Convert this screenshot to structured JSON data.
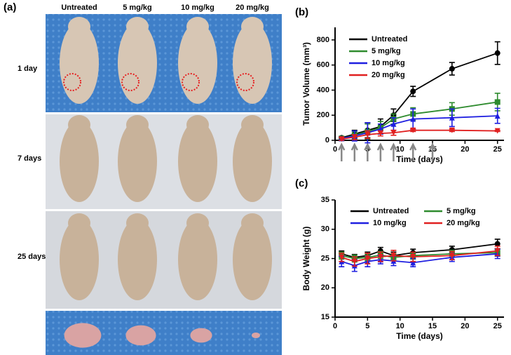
{
  "photo": {
    "label": "(a)",
    "columns": [
      "Untreated",
      "5 mg/kg",
      "10 mg/kg",
      "20 mg/kg"
    ],
    "rows": [
      "1 day",
      "7 days",
      "25 days"
    ]
  },
  "chart_data": [
    {
      "type": "line",
      "label": "(b)",
      "x_label": "Time (days)",
      "y_label": "Tumor Volume (mm³)",
      "x": [
        1,
        3,
        5,
        7,
        9,
        12,
        18,
        25
      ],
      "xlim": [
        0,
        26
      ],
      "xticks": [
        0,
        5,
        10,
        15,
        20,
        25
      ],
      "ylim": [
        0,
        900
      ],
      "yticks": [
        0,
        200,
        400,
        600,
        800
      ],
      "legend": "upper left",
      "legend_columns": 1,
      "markers_x": [
        1,
        3,
        5,
        7,
        9,
        12,
        15
      ],
      "series": [
        {
          "name": "Untreated",
          "color": "#000000",
          "marker": "circle",
          "values": [
            20,
            50,
            80,
            110,
            200,
            390,
            570,
            695
          ],
          "errors": [
            10,
            30,
            60,
            60,
            50,
            40,
            50,
            90
          ]
        },
        {
          "name": "5 mg/kg",
          "color": "#2e8b2e",
          "marker": "square",
          "values": [
            15,
            40,
            70,
            100,
            170,
            210,
            250,
            305
          ],
          "errors": [
            10,
            30,
            60,
            50,
            40,
            50,
            50,
            70
          ]
        },
        {
          "name": "10 mg/kg",
          "color": "#1f1fe0",
          "marker": "triangle-up",
          "values": [
            15,
            35,
            60,
            90,
            130,
            170,
            180,
            195
          ],
          "errors": [
            10,
            40,
            80,
            40,
            50,
            80,
            70,
            60
          ]
        },
        {
          "name": "20 mg/kg",
          "color": "#e02020",
          "marker": "triangle-down",
          "values": [
            10,
            25,
            45,
            55,
            60,
            80,
            80,
            75
          ],
          "errors": [
            10,
            20,
            30,
            20,
            20,
            10,
            10,
            5
          ]
        }
      ]
    },
    {
      "type": "line",
      "label": "(c)",
      "x_label": "Time (days)",
      "y_label": "Body Weight (g)",
      "x": [
        1,
        3,
        5,
        7,
        9,
        12,
        18,
        25
      ],
      "xlim": [
        0,
        26
      ],
      "xticks": [
        0,
        5,
        10,
        15,
        20,
        25
      ],
      "ylim": [
        15,
        35
      ],
      "yticks": [
        15,
        20,
        25,
        30,
        35
      ],
      "legend": "upper center",
      "legend_columns": 2,
      "series": [
        {
          "name": "Untreated",
          "color": "#000000",
          "marker": "circle",
          "values": [
            25.8,
            25.2,
            25.5,
            26.3,
            25.5,
            26.0,
            26.5,
            27.5
          ],
          "errors": [
            0.5,
            0.5,
            0.6,
            0.6,
            0.6,
            0.6,
            0.6,
            0.8
          ]
        },
        {
          "name": "5 mg/kg",
          "color": "#2e8b2e",
          "marker": "square",
          "values": [
            25.5,
            25.0,
            25.2,
            25.6,
            25.2,
            25.5,
            25.8,
            26.0
          ],
          "errors": [
            0.6,
            0.6,
            0.6,
            0.6,
            0.6,
            0.6,
            0.6,
            0.6
          ]
        },
        {
          "name": "10 mg/kg",
          "color": "#1f1fe0",
          "marker": "triangle-up",
          "values": [
            24.5,
            23.8,
            24.5,
            24.8,
            24.6,
            24.3,
            25.2,
            25.8
          ],
          "errors": [
            0.9,
            1.0,
            0.9,
            0.7,
            0.8,
            0.7,
            0.7,
            0.8
          ]
        },
        {
          "name": "20 mg/kg",
          "color": "#e02020",
          "marker": "triangle-down",
          "values": [
            25.2,
            24.5,
            25.0,
            25.3,
            25.5,
            25.3,
            25.5,
            26.3
          ],
          "errors": [
            0.7,
            0.8,
            0.9,
            0.8,
            0.9,
            0.8,
            0.7,
            0.8
          ]
        }
      ]
    }
  ]
}
